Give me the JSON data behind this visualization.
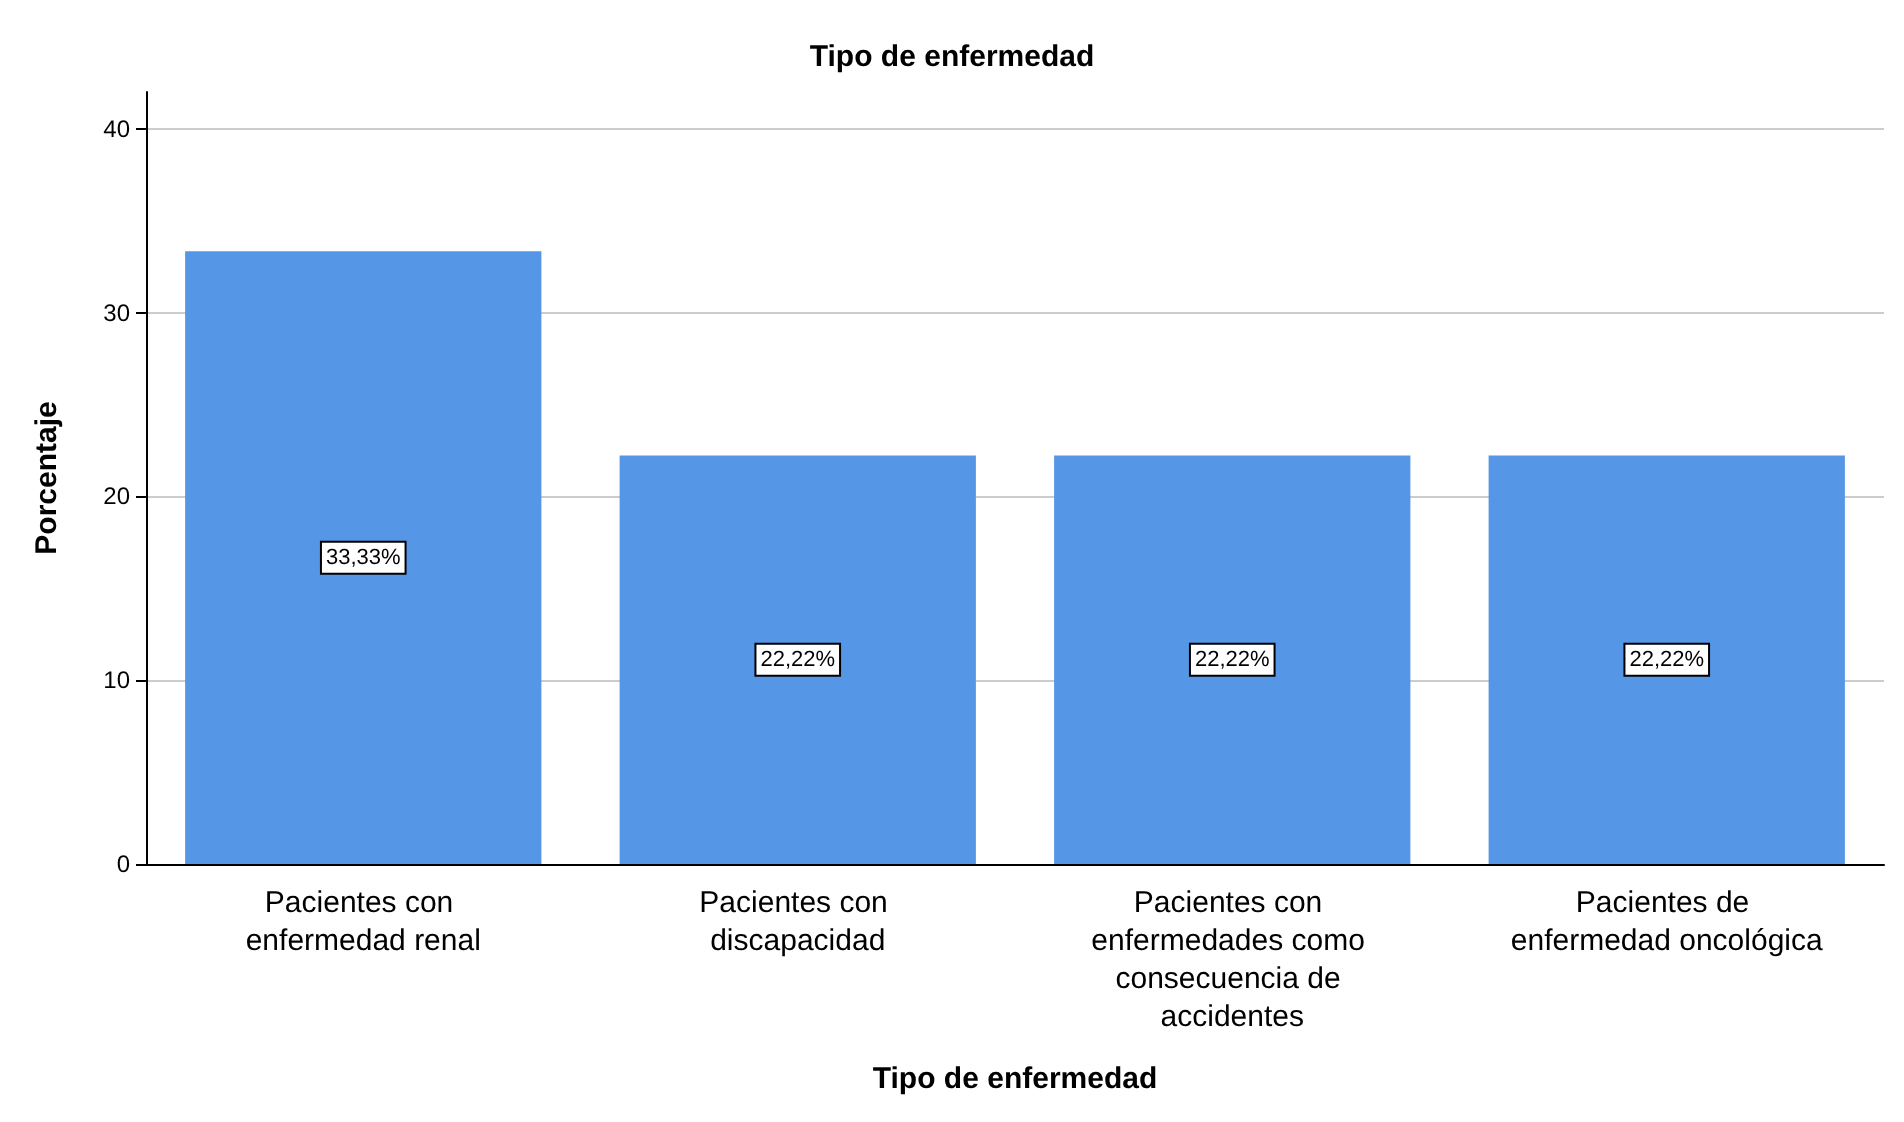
{
  "chart_data": {
    "type": "bar",
    "title": "Tipo de enfermedad",
    "xlabel": "Tipo de enfermedad",
    "ylabel": "Porcentaje",
    "categories": [
      "Pacientes con enfermedad renal",
      "Pacientes con discapacidad",
      "Pacientes con enfermedades como consecuencia de accidentes",
      "Pacientes de enfermedad oncológica"
    ],
    "values": [
      33.33,
      22.22,
      22.22,
      22.22
    ],
    "value_labels": [
      "33,33%",
      "22,22%",
      "22,22%",
      "22,22%"
    ],
    "color": "#5596e6",
    "ylim": [
      0,
      42
    ],
    "yticks": [
      0,
      10,
      20,
      30,
      40
    ],
    "grid": "y"
  }
}
